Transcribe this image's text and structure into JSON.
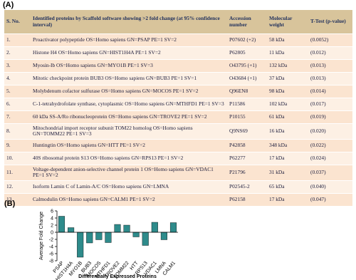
{
  "panel_a": {
    "label": "(A)",
    "table": {
      "header": [
        "S. No.",
        "Identified proteins by Scaffold software showing >2 fold change (at 95% confidence interval)",
        "Accession number",
        "Molecular weight",
        "T-Test (p-value)"
      ],
      "rows": [
        [
          "1.",
          "Proactivator polypeptide OS=Homo sapiens GN=PSAP PE=1 SV=2",
          "P07602 (+2)",
          "58 kDa",
          "(0.0052)"
        ],
        [
          "2.",
          "Histone H4 OS=Homo sapiens GN=HIST1H4A PE=1 SV=2",
          "P62805",
          "11 kDa",
          "(0.012)"
        ],
        [
          "3.",
          "Myosin-Ib OS=Homo sapiens GN=MYO1B PE=1 SV=3",
          "O43795 (+1)",
          "132 kDa",
          "(0.013)"
        ],
        [
          "4.",
          "Mitotic checkpoint protein BUB3 OS=Homo sapiens GN=BUB3 PE=1 SV=1",
          "O43684 (+1)",
          "37 kDa",
          "(0.013)"
        ],
        [
          "5.",
          "Molybdenum cofactor sulfurase OS=Homo sapiens GN=MOCOS PE=1 SV=2",
          "Q96EN8",
          "98 kDa",
          "(0.014)"
        ],
        [
          "6.",
          "C-1-tetrahydrofolate synthase, cytoplasmic OS=Homo sapiens GN=MTHFD1 PE=1 SV=3",
          "P11586",
          "102 kDa",
          "(0.017)"
        ],
        [
          "7.",
          "60 kDa SS-A/Ro ribonucleoprotein OS=Homo sapiens GN=TROVE2 PE=1 SV=2",
          "P10155",
          "61 kDa",
          "(0.019)"
        ],
        [
          "8.",
          "Mitochondrial import receptor subunit TOM22 homolog OS=Homo sapiens GN=TOMM22 PE=1 SV=3",
          "Q9NS69",
          "16 kDa",
          "(0.020)"
        ],
        [
          "9.",
          "Huntingtin OS=Homo sapiens GN=HTT PE=1 SV=2",
          "P42858",
          "348 kDa",
          "(0.022)"
        ],
        [
          "10.",
          "40S ribosomal protein S13 OS=Homo sapiens GN=RPS13 PE=1 SV=2",
          "P62277",
          "17 kDa",
          "(0.024)"
        ],
        [
          "11.",
          "Voltage-dependent anion-selective channel protein 1 OS=Homo sapiens GN=VDAC1 PE=1 SV=2",
          "P21796",
          "31 kDa",
          "(0.037)"
        ],
        [
          "12.",
          "Isoform Lamin C of Lamin-A/C OS=Homo sapiens GN=LMNA",
          "P02545-2",
          "65 kDa",
          "(0.040)"
        ],
        [
          "13.",
          "Calmodulin OS=Homo sapiens GN=CALM1 PE=1 SV=2",
          "P62158",
          "17 kDa",
          "(0.047)"
        ]
      ]
    }
  },
  "panel_b": {
    "label": "(B)"
  },
  "chart_data": {
    "type": "bar",
    "x_label": "Differentially Expressed Proteins",
    "y_label": "Average Fold Change",
    "categories": [
      "PSAP",
      "HIST1H4A",
      "MYO1B",
      "BUB3",
      "MOCOS",
      "MTHFD1",
      "TROVE2",
      "TOMM22",
      "HTT",
      "RPS13",
      "VDAC1",
      "LMNA",
      "CALM1"
    ],
    "values": [
      4.5,
      1.3,
      -7,
      -3,
      -2.1,
      -2.9,
      2.2,
      2.0,
      -1.3,
      -3.7,
      2.8,
      -2.1,
      2.7
    ],
    "color": "#2e8b8b",
    "ylim": [
      -8,
      6
    ],
    "yticks": [
      -8,
      -6,
      -4,
      -2,
      0,
      2,
      4,
      6
    ]
  }
}
